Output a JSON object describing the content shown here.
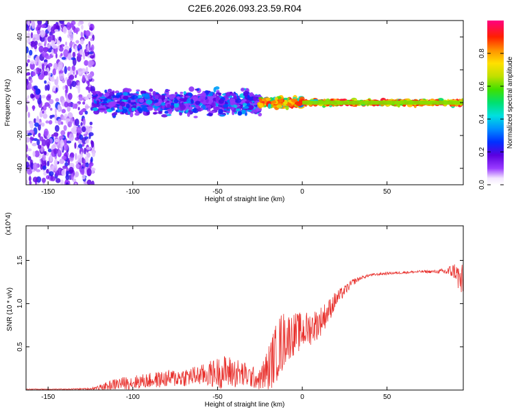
{
  "title": "C2E6.2026.093.23.59.R04",
  "chart_data": [
    {
      "type": "heatmap",
      "title": "C2E6.2026.093.23.59.R04",
      "xlabel": "Height of straight line (km)",
      "ylabel": "Frequency (Hz)",
      "xlim": [
        -163,
        95
      ],
      "ylim": [
        -50,
        50
      ],
      "xticks": [
        -150,
        -100,
        -50,
        0,
        50
      ],
      "yticks": [
        -40,
        -20,
        0,
        20,
        40
      ],
      "colorbar": {
        "label": "Normalized spectral amplitude",
        "range": [
          0,
          1
        ],
        "ticks": [
          0.0,
          0.2,
          0.4,
          0.6,
          0.8
        ],
        "tick_labels": [
          "0.0",
          "0.2",
          "0.4",
          "0.6",
          "0.8"
        ]
      },
      "profile_description_regions": [
        {
          "x_range": [
            -163,
            -123
          ],
          "frequency_spread": 50,
          "amplitude": [
            0.05,
            0.25
          ]
        },
        {
          "x_range": [
            -123,
            -25
          ],
          "frequency_spread": 10,
          "amplitude": [
            0.1,
            0.4
          ]
        },
        {
          "x_range": [
            -25,
            0
          ],
          "frequency_spread": 4,
          "amplitude": [
            0.2,
            0.95
          ]
        },
        {
          "x_range": [
            0,
            95
          ],
          "frequency_spread": 2,
          "amplitude": [
            0.35,
            0.95
          ]
        }
      ]
    },
    {
      "type": "line",
      "title": "",
      "xlabel": "Height of straight line (km)",
      "ylabel": "SNR (10 * v/v)",
      "y_multiplier": "(x10^4)",
      "xlim": [
        -163,
        95
      ],
      "ylim": [
        0,
        1.9
      ],
      "xticks": [
        -150,
        -100,
        -50,
        0,
        50
      ],
      "yticks": [
        0.5,
        1.0,
        1.5
      ],
      "ytick_labels": [
        "0.5",
        "1.0",
        "1.5"
      ],
      "series": [
        {
          "name": "SNR",
          "color": "#e8302c",
          "x": [
            -163,
            -140,
            -125,
            -118,
            -110,
            -100,
            -90,
            -80,
            -70,
            -60,
            -50,
            -45,
            -40,
            -35,
            -30,
            -25,
            -20,
            -15,
            -12,
            -10,
            -5,
            0,
            5,
            10,
            15,
            20,
            25,
            30,
            35,
            40,
            50,
            60,
            70,
            80,
            85,
            90,
            95
          ],
          "mean": [
            0.01,
            0.01,
            0.015,
            0.03,
            0.07,
            0.09,
            0.11,
            0.13,
            0.15,
            0.17,
            0.2,
            0.21,
            0.2,
            0.18,
            0.15,
            0.12,
            0.25,
            0.45,
            0.55,
            0.6,
            0.65,
            0.68,
            0.72,
            0.78,
            0.9,
            1.05,
            1.15,
            1.25,
            1.3,
            1.33,
            1.35,
            1.36,
            1.37,
            1.37,
            1.37,
            1.38,
            1.2
          ],
          "spread": [
            0.005,
            0.005,
            0.01,
            0.04,
            0.07,
            0.08,
            0.09,
            0.1,
            0.11,
            0.12,
            0.18,
            0.2,
            0.18,
            0.16,
            0.13,
            0.12,
            0.28,
            0.35,
            0.38,
            0.3,
            0.25,
            0.22,
            0.2,
            0.18,
            0.14,
            0.1,
            0.06,
            0.04,
            0.02,
            0.015,
            0.015,
            0.015,
            0.015,
            0.02,
            0.05,
            0.1,
            0.25
          ]
        }
      ]
    }
  ]
}
